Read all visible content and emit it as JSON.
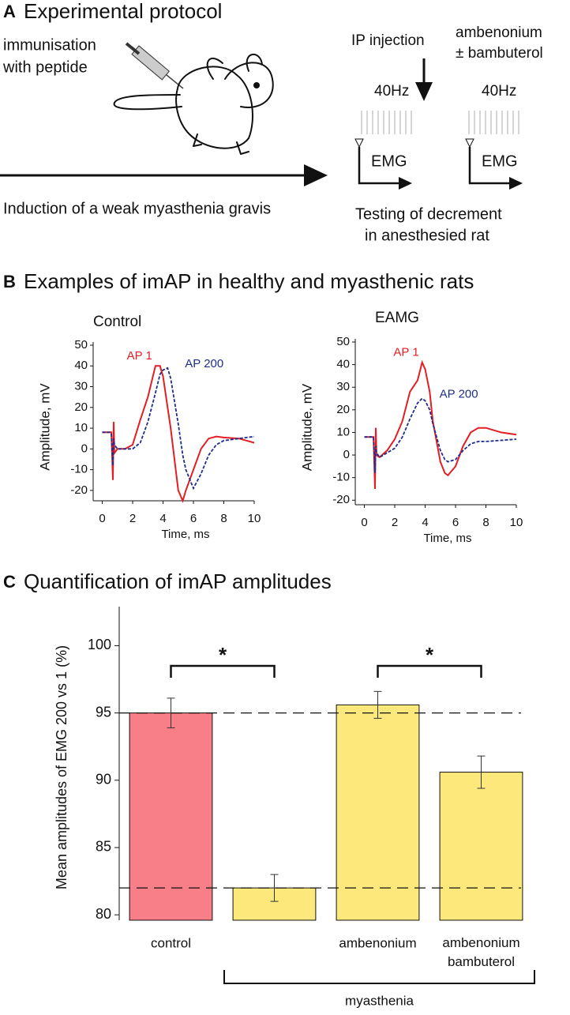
{
  "panel_a": {
    "label": "A",
    "title": "Experimental protocol",
    "immunisation": [
      "immunisation",
      "with peptide"
    ],
    "induction": "Induction of a weak myasthenia gravis",
    "ip_injection": "IP injection",
    "drugs": [
      "ambenonium",
      "± bambuterol"
    ],
    "stimulus": [
      "40Hz",
      "40Hz"
    ],
    "recording": [
      "EMG",
      "EMG"
    ],
    "testing": [
      "Testing of decrement",
      "in anesthesied rat"
    ]
  },
  "panel_b": {
    "label": "B",
    "title": "Examples of imAP in healthy and myasthenic rats"
  },
  "chart_data": [
    {
      "type": "line",
      "title": "Control",
      "xlabel": "Time, ms",
      "ylabel": "Amplitude, mV",
      "x": [
        0,
        0.5,
        0.6,
        0.7,
        0.75,
        0.8,
        1,
        1.5,
        2,
        2.5,
        3,
        3.5,
        3.8,
        4,
        4.3,
        4.5,
        5,
        5.3,
        5.5,
        6,
        6.5,
        7,
        7.5,
        8,
        9,
        10
      ],
      "series": [
        {
          "name": "AP 1",
          "color": "#e31e24",
          "style": "solid",
          "values": [
            8,
            8,
            8,
            -15,
            13,
            -2,
            0,
            0,
            2,
            14,
            25,
            40,
            40,
            35,
            20,
            10,
            -20,
            -25,
            -20,
            -10,
            0,
            5,
            6,
            5.5,
            5,
            3
          ]
        },
        {
          "name": "AP 200",
          "color": "#1f2d8c",
          "style": "dashed",
          "values": [
            8,
            8,
            7,
            -8,
            5,
            2,
            0,
            0,
            0,
            3,
            13,
            27,
            36,
            38,
            39,
            34,
            12,
            -3,
            -10,
            -19,
            -12,
            -3,
            2,
            4,
            5,
            6
          ]
        }
      ],
      "xlim": [
        -0.6,
        10
      ],
      "ylim": [
        -25,
        50
      ],
      "xticks": [
        0,
        2,
        4,
        6,
        8,
        10
      ],
      "yticks": [
        50,
        40,
        30,
        20,
        10,
        0,
        -10,
        -20
      ]
    },
    {
      "type": "line",
      "title": "EAMG",
      "xlabel": "Time, ms",
      "ylabel": "Amplitude, mV",
      "x": [
        0,
        0.5,
        0.6,
        0.7,
        0.75,
        0.8,
        1,
        1.5,
        2,
        2.5,
        3,
        3.5,
        3.8,
        4,
        4.3,
        4.5,
        5,
        5.3,
        5.5,
        6,
        6.5,
        7,
        7.5,
        8,
        9,
        10
      ],
      "series": [
        {
          "name": "AP 1",
          "color": "#e31e24",
          "style": "solid",
          "values": [
            8,
            8,
            8,
            -15,
            12,
            0,
            -1,
            2,
            7,
            15,
            28,
            33,
            41,
            38,
            28,
            15,
            -3,
            -8,
            -9,
            -5,
            4,
            10,
            12,
            12,
            10,
            9
          ]
        },
        {
          "name": "AP 200",
          "color": "#1f2d8c",
          "style": "dashed",
          "values": [
            8,
            8,
            8,
            -8,
            4,
            1,
            -1,
            1,
            3,
            8,
            16,
            23,
            25,
            24,
            20,
            14,
            2,
            -2,
            -3,
            -2,
            2,
            5,
            6,
            6,
            6.5,
            7
          ]
        }
      ],
      "xlim": [
        -0.6,
        10
      ],
      "ylim": [
        -22,
        50
      ],
      "xticks": [
        0,
        2,
        4,
        6,
        8,
        10
      ],
      "yticks": [
        50,
        40,
        30,
        20,
        10,
        0,
        -10,
        -20
      ]
    },
    {
      "type": "bar",
      "panel_label": "C",
      "title": "Quantification of imAP amplitudes",
      "ylabel": "Mean amplitudes of EMG 200 vs 1 (%)",
      "categories": [
        "control",
        null,
        "ambenonium",
        "ambenonium bambuterol"
      ],
      "values": [
        95.0,
        82.0,
        95.6,
        90.6
      ],
      "errors": [
        1.1,
        1.0,
        1.0,
        1.2
      ],
      "colors": [
        "#f87e87",
        "#fde97b",
        "#fde97b",
        "#fde97b"
      ],
      "ylim": [
        79.6,
        102.9
      ],
      "yticks": [
        80,
        85,
        90,
        95,
        100
      ],
      "reference_lines": [
        95,
        82
      ],
      "significance": [
        {
          "from": 0,
          "to": 1,
          "label": "*"
        },
        {
          "from": 2,
          "to": 3,
          "label": "*"
        }
      ],
      "group": {
        "label": "myasthenia",
        "from": 1,
        "to": 3
      }
    }
  ]
}
